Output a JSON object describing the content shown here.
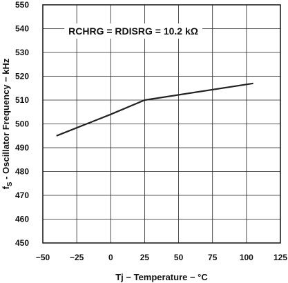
{
  "chart_data": {
    "type": "line",
    "title": "",
    "xlabel": "Tj − Temperature − °C",
    "ylabel_main": "f",
    "ylabel_sub": "S",
    "ylabel_rest": " - Oscillator Frequency − kHz",
    "annotation": "RCHRG = RDISRG = 10.2 kΩ",
    "xlim": [
      -50,
      125
    ],
    "ylim": [
      450,
      550
    ],
    "x_ticks": [
      -50,
      -25,
      0,
      25,
      50,
      75,
      100,
      125
    ],
    "x_tick_labels": [
      "−50",
      "−25",
      "0",
      "25",
      "50",
      "75",
      "100",
      "125"
    ],
    "y_ticks": [
      450,
      460,
      470,
      480,
      490,
      500,
      510,
      520,
      530,
      540,
      550
    ],
    "y_tick_labels": [
      "450",
      "460",
      "470",
      "480",
      "490",
      "500",
      "510",
      "520",
      "530",
      "540",
      "550"
    ],
    "grid": true,
    "series": [
      {
        "x": [
          -40,
          0,
          25,
          105
        ],
        "y": [
          495,
          504,
          510,
          517
        ],
        "color": "#222222"
      }
    ]
  }
}
